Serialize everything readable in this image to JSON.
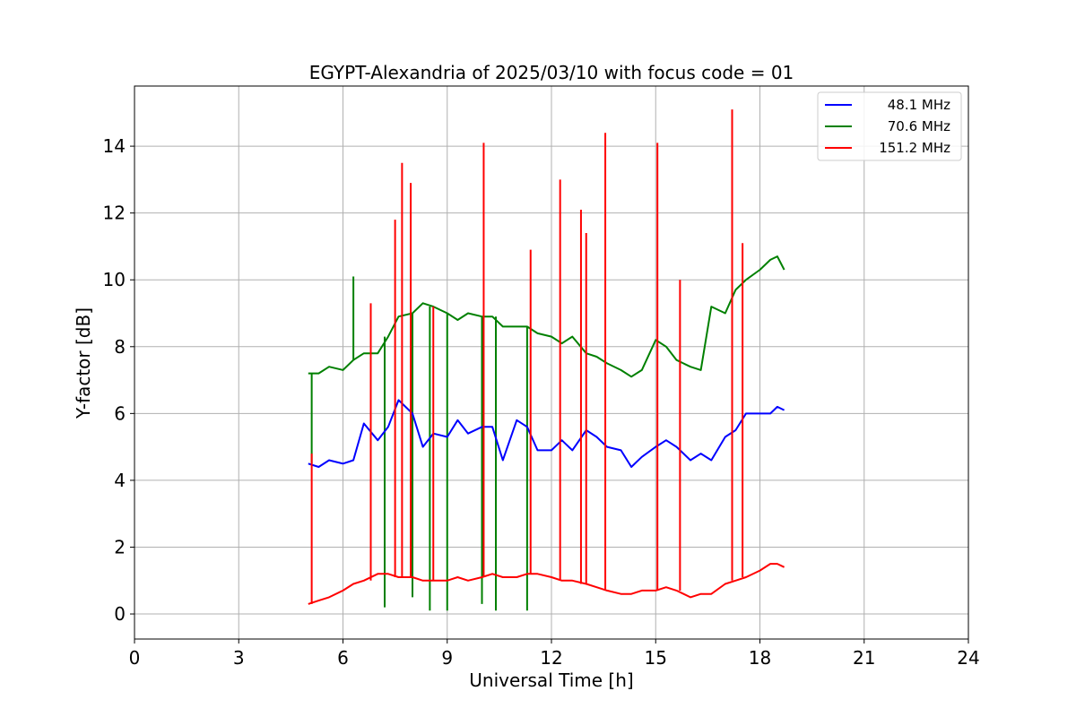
{
  "chart_data": {
    "type": "line",
    "title": "EGYPT-Alexandria of 2025/03/10 with focus code = 01",
    "xlabel": "Universal Time [h]",
    "ylabel": "Y-factor [dB]",
    "xlim": [
      0,
      24
    ],
    "ylim": [
      -0.75,
      15.8
    ],
    "xticks": [
      "0",
      "3",
      "6",
      "9",
      "12",
      "15",
      "18",
      "21",
      "24"
    ],
    "yticks": [
      "0",
      "2",
      "4",
      "6",
      "8",
      "10",
      "12",
      "14"
    ],
    "grid": true,
    "legend_position": "top-right",
    "series": [
      {
        "name": "48.1 MHz",
        "color": "#0000ff",
        "x": [
          5.0,
          5.3,
          5.6,
          6.0,
          6.3,
          6.6,
          7.0,
          7.3,
          7.6,
          8.0,
          8.3,
          8.6,
          9.0,
          9.3,
          9.6,
          10.0,
          10.3,
          10.6,
          11.0,
          11.3,
          11.6,
          12.0,
          12.3,
          12.6,
          13.0,
          13.3,
          13.6,
          14.0,
          14.3,
          14.6,
          15.0,
          15.3,
          15.6,
          16.0,
          16.3,
          16.6,
          17.0,
          17.3,
          17.6,
          18.0,
          18.3,
          18.5,
          18.7
        ],
        "y": [
          4.5,
          4.4,
          4.6,
          4.5,
          4.6,
          5.7,
          5.2,
          5.6,
          6.4,
          6.0,
          5.0,
          5.4,
          5.3,
          5.8,
          5.4,
          5.6,
          5.6,
          4.6,
          5.8,
          5.6,
          4.9,
          4.9,
          5.2,
          4.9,
          5.5,
          5.3,
          5.0,
          4.9,
          4.4,
          4.7,
          5.0,
          5.2,
          5.0,
          4.6,
          4.8,
          4.6,
          5.3,
          5.5,
          6.0,
          6.0,
          6.0,
          6.2,
          6.1
        ]
      },
      {
        "name": "70.6 MHz",
        "color": "#008000",
        "x": [
          5.0,
          5.3,
          5.6,
          6.0,
          6.3,
          6.6,
          7.0,
          7.3,
          7.6,
          8.0,
          8.3,
          8.6,
          9.0,
          9.3,
          9.6,
          10.0,
          10.3,
          10.6,
          11.0,
          11.3,
          11.6,
          12.0,
          12.3,
          12.6,
          13.0,
          13.3,
          13.6,
          14.0,
          14.3,
          14.6,
          15.0,
          15.3,
          15.6,
          16.0,
          16.3,
          16.6,
          17.0,
          17.3,
          17.6,
          18.0,
          18.3,
          18.5,
          18.7
        ],
        "y": [
          7.2,
          7.2,
          7.4,
          7.3,
          7.6,
          7.8,
          7.8,
          8.3,
          8.9,
          9.0,
          9.3,
          9.2,
          9.0,
          8.8,
          9.0,
          8.9,
          8.9,
          8.6,
          8.6,
          8.6,
          8.4,
          8.3,
          8.1,
          8.3,
          7.8,
          7.7,
          7.5,
          7.3,
          7.1,
          7.3,
          8.2,
          8.0,
          7.6,
          7.4,
          7.3,
          9.2,
          9.0,
          9.7,
          10.0,
          10.3,
          10.6,
          10.7,
          10.3
        ]
      },
      {
        "name": "151.2 MHz",
        "color": "#ff0000",
        "x": [
          5.0,
          5.3,
          5.6,
          6.0,
          6.3,
          6.6,
          7.0,
          7.3,
          7.6,
          8.0,
          8.3,
          8.6,
          9.0,
          9.3,
          9.6,
          10.0,
          10.3,
          10.6,
          11.0,
          11.3,
          11.6,
          12.0,
          12.3,
          12.6,
          13.0,
          13.3,
          13.6,
          14.0,
          14.3,
          14.6,
          15.0,
          15.3,
          15.6,
          16.0,
          16.3,
          16.6,
          17.0,
          17.3,
          17.6,
          18.0,
          18.3,
          18.5,
          18.7
        ],
        "y": [
          0.3,
          0.4,
          0.5,
          0.7,
          0.9,
          1.0,
          1.2,
          1.2,
          1.1,
          1.1,
          1.0,
          1.0,
          1.0,
          1.1,
          1.0,
          1.1,
          1.2,
          1.1,
          1.1,
          1.2,
          1.2,
          1.1,
          1.0,
          1.0,
          0.9,
          0.8,
          0.7,
          0.6,
          0.6,
          0.7,
          0.7,
          0.8,
          0.7,
          0.5,
          0.6,
          0.6,
          0.9,
          1.0,
          1.1,
          1.3,
          1.5,
          1.5,
          1.4
        ]
      }
    ],
    "spikes": [
      {
        "series": "151.2 MHz",
        "x": [
          5.1,
          6.8,
          7.5,
          7.7,
          7.95,
          8.6,
          10.05,
          11.4,
          12.25,
          12.85,
          13.0,
          13.55,
          15.05,
          15.7,
          17.2,
          17.5
        ],
        "y": [
          4.8,
          9.3,
          11.8,
          13.5,
          12.9,
          9.2,
          14.1,
          10.9,
          13.0,
          12.1,
          11.4,
          14.4,
          14.1,
          10.0,
          15.1,
          11.1
        ]
      },
      {
        "series": "70.6 MHz",
        "x": [
          5.1,
          6.3,
          7.2,
          8.0,
          8.5,
          9.0,
          10.0,
          10.4,
          11.3
        ],
        "y": [
          4.5,
          10.1,
          0.2,
          0.5,
          0.1,
          0.1,
          0.3,
          0.1,
          0.1
        ]
      }
    ]
  }
}
